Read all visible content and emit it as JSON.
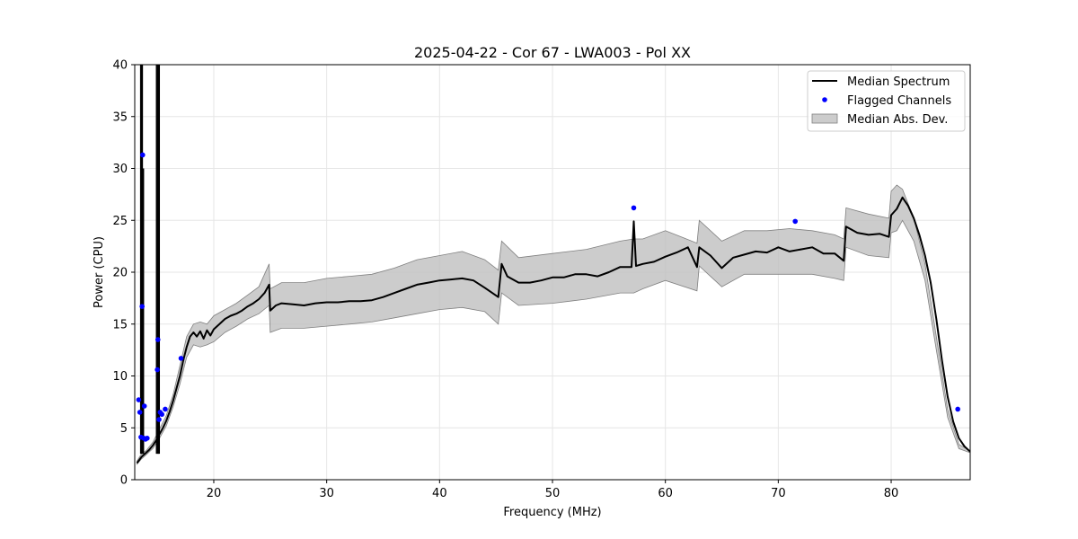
{
  "chart_data": {
    "type": "line",
    "title": "2025-04-22 - Cor 67 - LWA003 - Pol XX",
    "xlabel": "Frequency (MHz)",
    "ylabel": "Power (CPU)",
    "xlim": [
      13,
      87
    ],
    "ylim": [
      0,
      40
    ],
    "xticks": [
      20,
      30,
      40,
      50,
      60,
      70,
      80
    ],
    "yticks": [
      0,
      5,
      10,
      15,
      20,
      25,
      30,
      35,
      40
    ],
    "grid": true,
    "legend_position": "upper-right",
    "legend": [
      "Median Spectrum",
      "Flagged Channels",
      "Median Abs. Dev."
    ],
    "colors": {
      "median": "#000000",
      "flagged": "#0000ff",
      "band": "#bfbfbf",
      "band_edge": "#808080"
    },
    "series": [
      {
        "name": "Median Spectrum",
        "x": [
          13.2,
          13.4,
          13.6,
          13.8,
          14.0,
          14.3,
          14.6,
          14.9,
          15.2,
          15.5,
          15.8,
          16.1,
          16.4,
          16.7,
          17.0,
          17.3,
          17.6,
          17.9,
          18.2,
          18.5,
          18.8,
          19.1,
          19.4,
          19.7,
          20.0,
          20.5,
          21.0,
          21.5,
          22.0,
          22.5,
          23.0,
          23.5,
          24.0,
          24.5,
          24.9,
          25.0,
          25.5,
          26.0,
          27.0,
          28.0,
          29.0,
          30.0,
          31.0,
          32.0,
          33.0,
          34.0,
          35.0,
          36.0,
          37.0,
          38.0,
          39.0,
          40.0,
          41.0,
          42.0,
          43.0,
          44.0,
          45.2,
          45.5,
          46.0,
          47.0,
          48.0,
          49.0,
          50.0,
          51.0,
          52.0,
          53.0,
          54.0,
          55.0,
          56.0,
          57.0,
          57.2,
          57.4,
          58.0,
          59.0,
          60.0,
          61.0,
          62.0,
          62.8,
          63.0,
          64.0,
          65.0,
          66.0,
          67.0,
          68.0,
          69.0,
          70.0,
          71.0,
          72.0,
          73.0,
          74.0,
          75.0,
          75.8,
          76.0,
          77.0,
          78.0,
          79.0,
          79.8,
          80.0,
          80.5,
          81.0,
          81.5,
          82.0,
          82.5,
          83.0,
          83.5,
          84.0,
          84.5,
          85.0,
          85.5,
          86.0,
          86.5,
          87.0
        ],
        "values": [
          1.6,
          1.9,
          2.2,
          2.4,
          2.6,
          2.9,
          3.3,
          3.8,
          4.4,
          5.0,
          5.7,
          6.6,
          7.6,
          8.8,
          10.0,
          11.5,
          12.8,
          13.8,
          14.2,
          13.8,
          14.3,
          13.6,
          14.4,
          13.9,
          14.5,
          15.0,
          15.5,
          15.8,
          16.0,
          16.3,
          16.7,
          17.0,
          17.4,
          18.0,
          18.8,
          16.3,
          16.8,
          17.0,
          16.9,
          16.8,
          17.0,
          17.1,
          17.1,
          17.2,
          17.2,
          17.3,
          17.6,
          18.0,
          18.4,
          18.8,
          19.0,
          19.2,
          19.3,
          19.4,
          19.2,
          18.5,
          17.6,
          20.8,
          19.6,
          19.0,
          19.0,
          19.2,
          19.5,
          19.5,
          19.8,
          19.8,
          19.6,
          20.0,
          20.5,
          20.5,
          24.9,
          20.6,
          20.8,
          21.0,
          21.5,
          21.9,
          22.4,
          20.5,
          22.4,
          21.6,
          20.4,
          21.4,
          21.7,
          22.0,
          21.9,
          22.4,
          22.0,
          22.2,
          22.4,
          21.8,
          21.8,
          21.1,
          24.4,
          23.8,
          23.6,
          23.7,
          23.4,
          25.5,
          26.1,
          27.2,
          26.4,
          25.2,
          23.6,
          21.6,
          19.0,
          15.5,
          11.5,
          8.0,
          5.6,
          4.0,
          3.2,
          2.7
        ]
      },
      {
        "name": "Median Abs. Dev.",
        "x": [
          13.2,
          13.6,
          14.0,
          14.6,
          15.2,
          15.8,
          16.4,
          17.0,
          17.6,
          18.2,
          18.8,
          19.4,
          20.0,
          21.0,
          22.0,
          23.0,
          24.0,
          24.9,
          25.0,
          26.0,
          28.0,
          30.0,
          32.0,
          34.0,
          36.0,
          38.0,
          40.0,
          42.0,
          44.0,
          45.2,
          45.5,
          47.0,
          50.0,
          53.0,
          56.0,
          57.2,
          58.0,
          60.0,
          62.8,
          63.0,
          65.0,
          67.0,
          69.0,
          71.0,
          73.0,
          75.0,
          75.8,
          76.0,
          78.0,
          79.8,
          80.0,
          80.5,
          81.0,
          82.0,
          83.0,
          84.0,
          85.0,
          86.0,
          87.0
        ],
        "lower": [
          1.5,
          2.0,
          2.4,
          3.0,
          4.0,
          5.2,
          7.0,
          9.2,
          11.8,
          13.0,
          12.8,
          13.0,
          13.3,
          14.2,
          14.8,
          15.5,
          16.0,
          16.8,
          14.2,
          14.6,
          14.6,
          14.8,
          15.0,
          15.2,
          15.6,
          16.0,
          16.4,
          16.6,
          16.2,
          15.0,
          18.0,
          16.8,
          17.0,
          17.4,
          18.0,
          18.0,
          18.4,
          19.2,
          18.2,
          20.6,
          18.6,
          19.8,
          19.8,
          19.8,
          19.8,
          19.4,
          19.2,
          22.4,
          21.6,
          21.4,
          23.8,
          24.0,
          25.0,
          23.0,
          19.2,
          12.5,
          6.0,
          3.0,
          2.6
        ],
        "upper": [
          1.8,
          2.5,
          2.8,
          3.6,
          4.9,
          6.2,
          8.2,
          11.0,
          13.8,
          15.0,
          15.2,
          15.0,
          15.8,
          16.4,
          17.0,
          17.8,
          18.6,
          20.8,
          18.4,
          19.0,
          19.0,
          19.4,
          19.6,
          19.8,
          20.4,
          21.2,
          21.6,
          22.0,
          21.2,
          20.2,
          23.0,
          21.4,
          21.8,
          22.2,
          23.0,
          23.2,
          23.2,
          24.0,
          22.8,
          25.0,
          23.0,
          24.0,
          24.0,
          24.2,
          24.0,
          23.6,
          23.2,
          26.2,
          25.6,
          25.2,
          27.8,
          28.4,
          28.0,
          25.2,
          20.8,
          13.8,
          6.8,
          3.4,
          2.8
        ]
      },
      {
        "name": "Flagged Channels",
        "x": [
          13.35,
          13.45,
          13.55,
          13.65,
          13.7,
          13.8,
          13.85,
          13.95,
          14.1,
          15.0,
          15.05,
          15.15,
          15.25,
          15.4,
          15.7,
          17.1,
          57.2,
          71.5,
          85.9
        ],
        "values": [
          7.7,
          6.5,
          4.1,
          16.7,
          31.3,
          4.0,
          7.1,
          3.9,
          4.0,
          10.6,
          13.5,
          5.8,
          6.5,
          6.3,
          6.8,
          11.7,
          26.2,
          24.9,
          6.8
        ]
      }
    ],
    "spikes": [
      {
        "x": 13.55,
        "peak": 40
      },
      {
        "x": 13.65,
        "peak": 40
      },
      {
        "x": 13.75,
        "peak": 30
      },
      {
        "x": 14.95,
        "peak": 40
      },
      {
        "x": 15.05,
        "peak": 40
      },
      {
        "x": 15.15,
        "peak": 40
      }
    ]
  }
}
